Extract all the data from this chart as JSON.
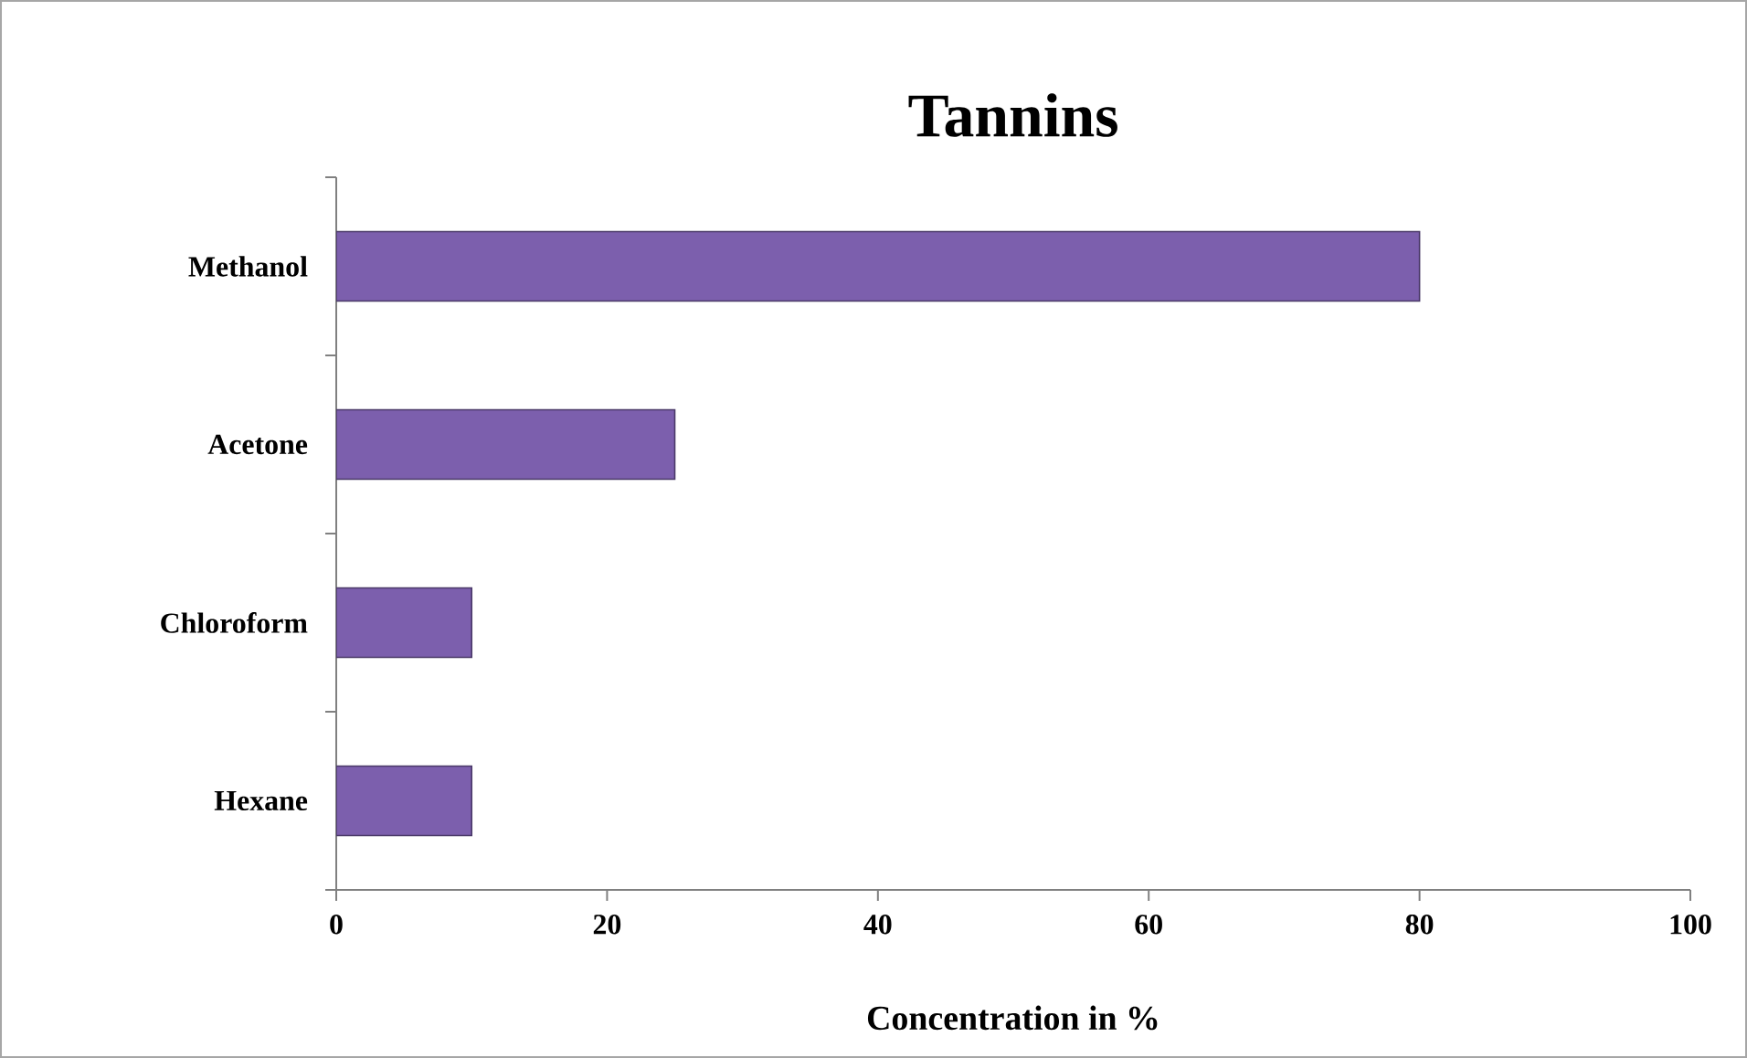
{
  "chart_data": {
    "type": "bar",
    "orientation": "horizontal",
    "title": "Tannins",
    "xlabel": "Concentration in %",
    "categories": [
      "Methanol",
      "Acetone",
      "Chloroform",
      "Hexane"
    ],
    "values": [
      80,
      25,
      10,
      10
    ],
    "color": "#7c5fad",
    "xlim": [
      0,
      100
    ],
    "xticks": [
      0,
      20,
      40,
      60,
      80,
      100
    ],
    "grid": false
  }
}
